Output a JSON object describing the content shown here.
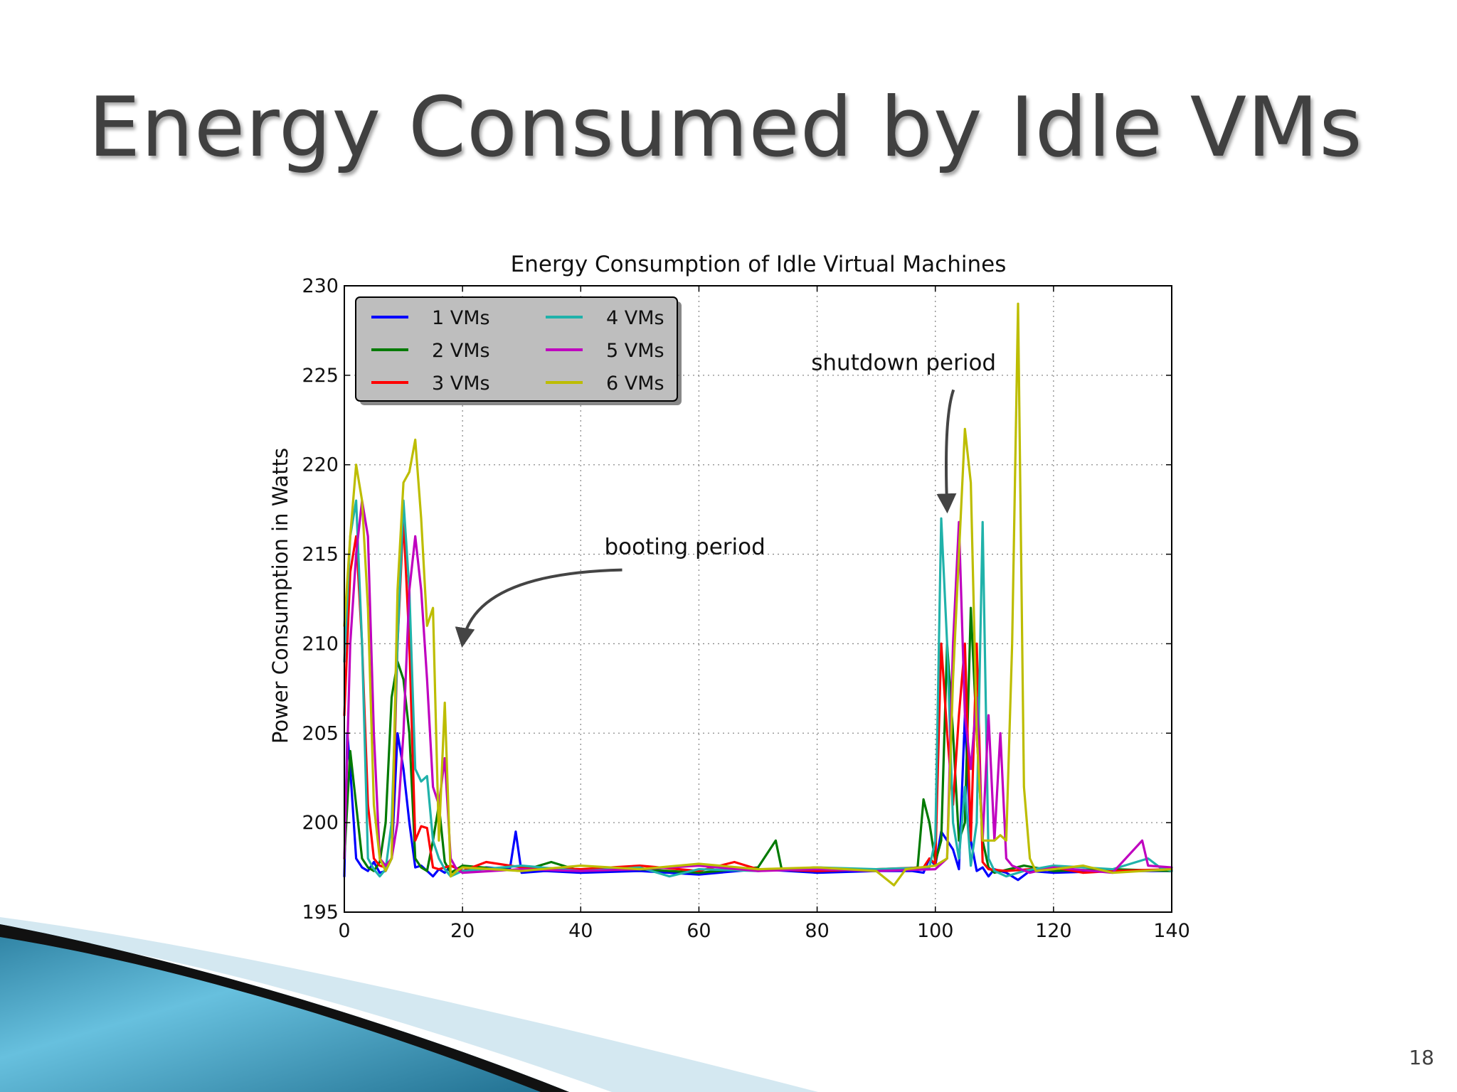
{
  "slide": {
    "title": "Energy Consumed by Idle VMs",
    "number": "18"
  },
  "chart_data": {
    "type": "line",
    "title": "Energy Consumption of Idle Virtual Machines",
    "xlabel": "",
    "ylabel": "Power Consumption in Watts",
    "xlim": [
      0,
      140
    ],
    "ylim": [
      195,
      230
    ],
    "xticks": [
      0,
      20,
      40,
      60,
      80,
      100,
      120,
      140
    ],
    "yticks": [
      195,
      200,
      205,
      210,
      215,
      220,
      225,
      230
    ],
    "grid": true,
    "legend_position": "top-left",
    "legend": [
      "1 VMs",
      "2 VMs",
      "3 VMs",
      "4 VMs",
      "5 VMs",
      "6 VMs"
    ],
    "annotations": [
      {
        "text": "booting period",
        "text_at": [
          44,
          215
        ],
        "arrow_to": [
          20,
          210
        ]
      },
      {
        "text": "shutdown period",
        "text_at": [
          79,
          225.3
        ],
        "arrow_to": [
          102,
          217.5
        ]
      }
    ],
    "series": [
      {
        "name": "1 VMs",
        "color": "#0000ff",
        "points": [
          [
            0,
            197
          ],
          [
            0.5,
            205
          ],
          [
            1,
            203
          ],
          [
            2,
            198
          ],
          [
            3,
            197.5
          ],
          [
            4,
            197.3
          ],
          [
            5,
            197.8
          ],
          [
            6,
            197.2
          ],
          [
            7,
            197.3
          ],
          [
            8,
            198
          ],
          [
            9,
            205
          ],
          [
            10,
            203
          ],
          [
            11,
            200
          ],
          [
            12,
            197.5
          ],
          [
            13,
            197.6
          ],
          [
            14,
            197.3
          ],
          [
            15,
            197
          ],
          [
            16,
            197.4
          ],
          [
            17,
            197.2
          ],
          [
            18,
            197.6
          ],
          [
            20,
            197.3
          ],
          [
            24,
            197.5
          ],
          [
            28,
            197.4
          ],
          [
            29,
            199.5
          ],
          [
            30,
            197.2
          ],
          [
            34,
            197.3
          ],
          [
            40,
            197.2
          ],
          [
            50,
            197.3
          ],
          [
            60,
            197.1
          ],
          [
            70,
            197.4
          ],
          [
            80,
            197.2
          ],
          [
            90,
            197.3
          ],
          [
            96,
            197.3
          ],
          [
            98,
            197.2
          ],
          [
            99,
            198
          ],
          [
            100,
            197.6
          ],
          [
            101,
            199.5
          ],
          [
            102,
            199
          ],
          [
            103,
            198.5
          ],
          [
            104,
            197.4
          ],
          [
            105,
            206
          ],
          [
            106,
            199
          ],
          [
            107,
            197.3
          ],
          [
            108,
            197.5
          ],
          [
            109,
            197
          ],
          [
            110,
            197.4
          ],
          [
            112,
            197.2
          ],
          [
            114,
            196.8
          ],
          [
            116,
            197.3
          ],
          [
            120,
            197.2
          ],
          [
            130,
            197.3
          ],
          [
            140,
            197.3
          ]
        ]
      },
      {
        "name": "2 VMs",
        "color": "#007a00",
        "points": [
          [
            0,
            198
          ],
          [
            1,
            204
          ],
          [
            2,
            201
          ],
          [
            3,
            198
          ],
          [
            4,
            197.5
          ],
          [
            5,
            197.3
          ],
          [
            6,
            197.8
          ],
          [
            7,
            200
          ],
          [
            8,
            207
          ],
          [
            9,
            209
          ],
          [
            10,
            208
          ],
          [
            11,
            205
          ],
          [
            12,
            198
          ],
          [
            13,
            197.5
          ],
          [
            14,
            197.3
          ],
          [
            15,
            199
          ],
          [
            16,
            201
          ],
          [
            17,
            197.8
          ],
          [
            18,
            197.2
          ],
          [
            20,
            197.6
          ],
          [
            30,
            197.3
          ],
          [
            35,
            197.8
          ],
          [
            40,
            197.3
          ],
          [
            50,
            197.4
          ],
          [
            60,
            197.2
          ],
          [
            70,
            197.5
          ],
          [
            73,
            199
          ],
          [
            74,
            197.4
          ],
          [
            80,
            197.5
          ],
          [
            90,
            197.3
          ],
          [
            97,
            197.5
          ],
          [
            98,
            201.3
          ],
          [
            99,
            200
          ],
          [
            100,
            197.8
          ],
          [
            101,
            199
          ],
          [
            102,
            210
          ],
          [
            103,
            205
          ],
          [
            104,
            199
          ],
          [
            105,
            200
          ],
          [
            106,
            212
          ],
          [
            107,
            205
          ],
          [
            108,
            199
          ],
          [
            109,
            197.5
          ],
          [
            110,
            197.2
          ],
          [
            115,
            197.6
          ],
          [
            120,
            197.3
          ],
          [
            130,
            197.4
          ],
          [
            140,
            197.3
          ]
        ]
      },
      {
        "name": "3 VMs",
        "color": "#ff0000",
        "points": [
          [
            0,
            206
          ],
          [
            1,
            214
          ],
          [
            2,
            216
          ],
          [
            3,
            210
          ],
          [
            4,
            201
          ],
          [
            5,
            198
          ],
          [
            6,
            197.6
          ],
          [
            7,
            197.5
          ],
          [
            8,
            198
          ],
          [
            9,
            210
          ],
          [
            10,
            217
          ],
          [
            11,
            210
          ],
          [
            12,
            199
          ],
          [
            13,
            199.8
          ],
          [
            14,
            199.7
          ],
          [
            15,
            197.5
          ],
          [
            16,
            197.4
          ],
          [
            18,
            197.6
          ],
          [
            20,
            197.3
          ],
          [
            24,
            197.8
          ],
          [
            30,
            197.5
          ],
          [
            40,
            197.4
          ],
          [
            50,
            197.6
          ],
          [
            60,
            197.3
          ],
          [
            66,
            197.8
          ],
          [
            70,
            197.4
          ],
          [
            80,
            197.3
          ],
          [
            90,
            197.4
          ],
          [
            98,
            197.5
          ],
          [
            99,
            198
          ],
          [
            100,
            197.7
          ],
          [
            101,
            210
          ],
          [
            102,
            205
          ],
          [
            103,
            201
          ],
          [
            104,
            206
          ],
          [
            105,
            210
          ],
          [
            106,
            199
          ],
          [
            107,
            210
          ],
          [
            108,
            197.8
          ],
          [
            109,
            197.4
          ],
          [
            112,
            197.3
          ],
          [
            120,
            197.5
          ],
          [
            125,
            197.2
          ],
          [
            130,
            197.3
          ],
          [
            140,
            197.4
          ]
        ]
      },
      {
        "name": "4 VMs",
        "color": "#20b2aa",
        "points": [
          [
            0,
            209
          ],
          [
            1,
            216
          ],
          [
            2,
            218
          ],
          [
            3,
            210
          ],
          [
            4,
            198
          ],
          [
            5,
            197.4
          ],
          [
            6,
            197
          ],
          [
            7,
            197.4
          ],
          [
            8,
            200
          ],
          [
            9,
            210
          ],
          [
            10,
            218
          ],
          [
            11,
            213
          ],
          [
            12,
            203
          ],
          [
            13,
            202.3
          ],
          [
            14,
            202.6
          ],
          [
            15,
            199
          ],
          [
            16,
            198
          ],
          [
            17,
            197.4
          ],
          [
            18,
            197
          ],
          [
            20,
            197.3
          ],
          [
            30,
            197.6
          ],
          [
            40,
            197.3
          ],
          [
            50,
            197.5
          ],
          [
            55,
            197
          ],
          [
            60,
            197.4
          ],
          [
            70,
            197.3
          ],
          [
            80,
            197.5
          ],
          [
            90,
            197.4
          ],
          [
            99,
            197.5
          ],
          [
            100,
            199
          ],
          [
            101,
            217
          ],
          [
            102,
            210
          ],
          [
            103,
            200
          ],
          [
            104,
            198
          ],
          [
            105,
            202
          ],
          [
            106,
            197.6
          ],
          [
            107,
            200
          ],
          [
            108,
            216.8
          ],
          [
            109,
            198
          ],
          [
            110,
            197.3
          ],
          [
            112,
            197
          ],
          [
            115,
            197.3
          ],
          [
            120,
            197.6
          ],
          [
            130,
            197.4
          ],
          [
            136,
            198
          ],
          [
            138,
            197.5
          ],
          [
            140,
            197.3
          ]
        ]
      },
      {
        "name": "5 VMs",
        "color": "#bf00bf",
        "points": [
          [
            0,
            198
          ],
          [
            1,
            210
          ],
          [
            2,
            215
          ],
          [
            3,
            218
          ],
          [
            4,
            216
          ],
          [
            5,
            205
          ],
          [
            6,
            198
          ],
          [
            7,
            197.6
          ],
          [
            8,
            198
          ],
          [
            9,
            200
          ],
          [
            10,
            205
          ],
          [
            11,
            213
          ],
          [
            12,
            216
          ],
          [
            13,
            213
          ],
          [
            14,
            208
          ],
          [
            15,
            202
          ],
          [
            16,
            201
          ],
          [
            17,
            203.6
          ],
          [
            18,
            198
          ],
          [
            19,
            197.4
          ],
          [
            20,
            197.2
          ],
          [
            30,
            197.4
          ],
          [
            40,
            197.3
          ],
          [
            50,
            197.4
          ],
          [
            60,
            197.6
          ],
          [
            70,
            197.3
          ],
          [
            80,
            197.4
          ],
          [
            90,
            197.3
          ],
          [
            100,
            197.4
          ],
          [
            102,
            198
          ],
          [
            103,
            210
          ],
          [
            104,
            216.8
          ],
          [
            105,
            206
          ],
          [
            106,
            203
          ],
          [
            107,
            207
          ],
          [
            108,
            199
          ],
          [
            109,
            206
          ],
          [
            110,
            199
          ],
          [
            111,
            205
          ],
          [
            112,
            198
          ],
          [
            113,
            197.6
          ],
          [
            116,
            197.2
          ],
          [
            120,
            197.5
          ],
          [
            130,
            197.2
          ],
          [
            135,
            199
          ],
          [
            136,
            197.6
          ],
          [
            140,
            197.5
          ]
        ]
      },
      {
        "name": "6 VMs",
        "color": "#bdbd00",
        "points": [
          [
            0,
            211
          ],
          [
            1,
            216
          ],
          [
            2,
            220
          ],
          [
            3,
            218
          ],
          [
            4,
            212
          ],
          [
            5,
            201
          ],
          [
            6,
            198
          ],
          [
            7,
            197.3
          ],
          [
            8,
            198
          ],
          [
            9,
            213
          ],
          [
            10,
            219
          ],
          [
            11,
            219.6
          ],
          [
            12,
            221.4
          ],
          [
            13,
            217
          ],
          [
            14,
            211
          ],
          [
            15,
            212
          ],
          [
            16,
            199
          ],
          [
            17,
            206.7
          ],
          [
            18,
            197
          ],
          [
            19,
            197.3
          ],
          [
            20,
            197.5
          ],
          [
            30,
            197.3
          ],
          [
            40,
            197.6
          ],
          [
            50,
            197.4
          ],
          [
            60,
            197.7
          ],
          [
            70,
            197.4
          ],
          [
            80,
            197.5
          ],
          [
            90,
            197.3
          ],
          [
            93,
            196.5
          ],
          [
            95,
            197.4
          ],
          [
            100,
            197.6
          ],
          [
            102,
            198
          ],
          [
            103,
            208
          ],
          [
            104,
            215
          ],
          [
            105,
            222
          ],
          [
            106,
            219
          ],
          [
            107,
            205
          ],
          [
            108,
            199
          ],
          [
            109,
            199
          ],
          [
            110,
            199
          ],
          [
            111,
            199.3
          ],
          [
            112,
            199
          ],
          [
            113,
            210
          ],
          [
            114,
            229
          ],
          [
            115,
            202
          ],
          [
            116,
            198
          ],
          [
            117,
            197.3
          ],
          [
            120,
            197.4
          ],
          [
            125,
            197.6
          ],
          [
            130,
            197.2
          ],
          [
            140,
            197.4
          ]
        ]
      }
    ]
  }
}
